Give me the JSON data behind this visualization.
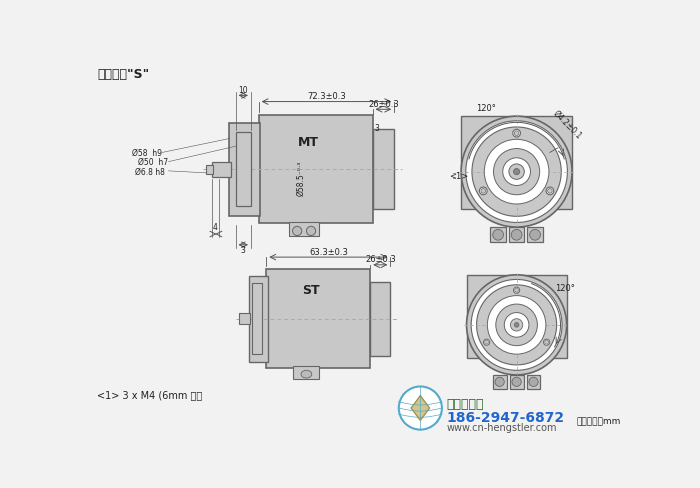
{
  "bg_color": "#f2f2f2",
  "title": "同步法兰\"S\"",
  "note": "<1> 3 x M4 (6mm 深）",
  "unit_note": "尺寸单位：mm",
  "company_name": "西安德伍拓",
  "phone": "186-2947-6872",
  "website": "www.cn-hengstler.com",
  "colors": {
    "body_fill": "#c8c8c8",
    "body_edge": "#666666",
    "dim_line": "#555555",
    "center_line": "#aaaaaa",
    "text_color": "#222222",
    "logo_blue": "#55aacc",
    "logo_green": "#44aa44",
    "phone_blue": "#2266cc",
    "web_gray": "#555555",
    "company_green": "#226622"
  }
}
